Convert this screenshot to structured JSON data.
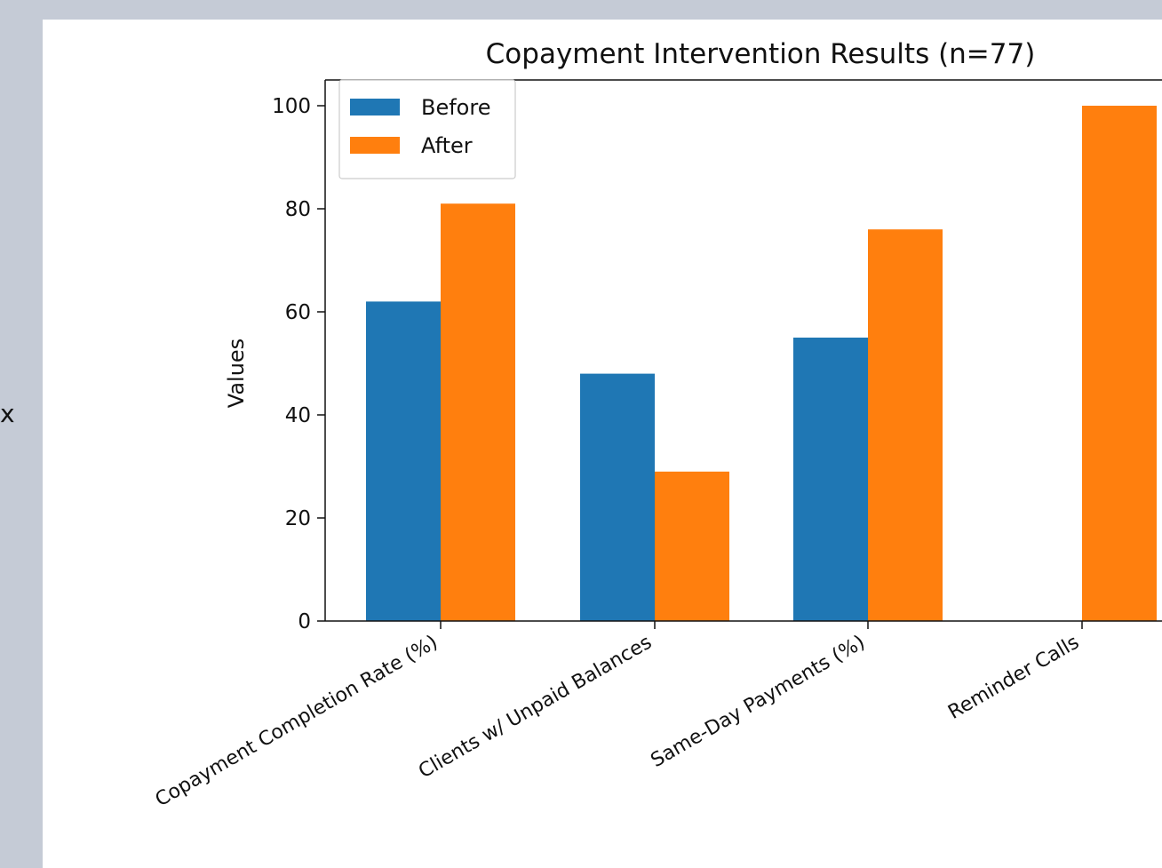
{
  "side_fragment": "x",
  "chart_data": {
    "type": "bar",
    "title": "Copayment Intervention Results (n=77)",
    "xlabel": "",
    "ylabel": "Values",
    "ylim": [
      0,
      105
    ],
    "yticks": [
      0,
      20,
      40,
      60,
      80,
      100
    ],
    "yticklabels": [
      "0",
      "20",
      "40",
      "60",
      "80",
      "100"
    ],
    "categories": [
      "Copayment Completion Rate (%)",
      "Clients w/ Unpaid Balances",
      "Same-Day Payments (%)",
      "Reminder Calls"
    ],
    "series": [
      {
        "name": "Before",
        "color": "#1f77b4",
        "values": [
          62,
          48,
          55,
          0
        ]
      },
      {
        "name": "After",
        "color": "#ff7f0e",
        "values": [
          81,
          29,
          76,
          100
        ]
      }
    ],
    "legend": {
      "placement": "top-left",
      "entries": [
        "Before",
        "After"
      ]
    },
    "grid": false
  }
}
